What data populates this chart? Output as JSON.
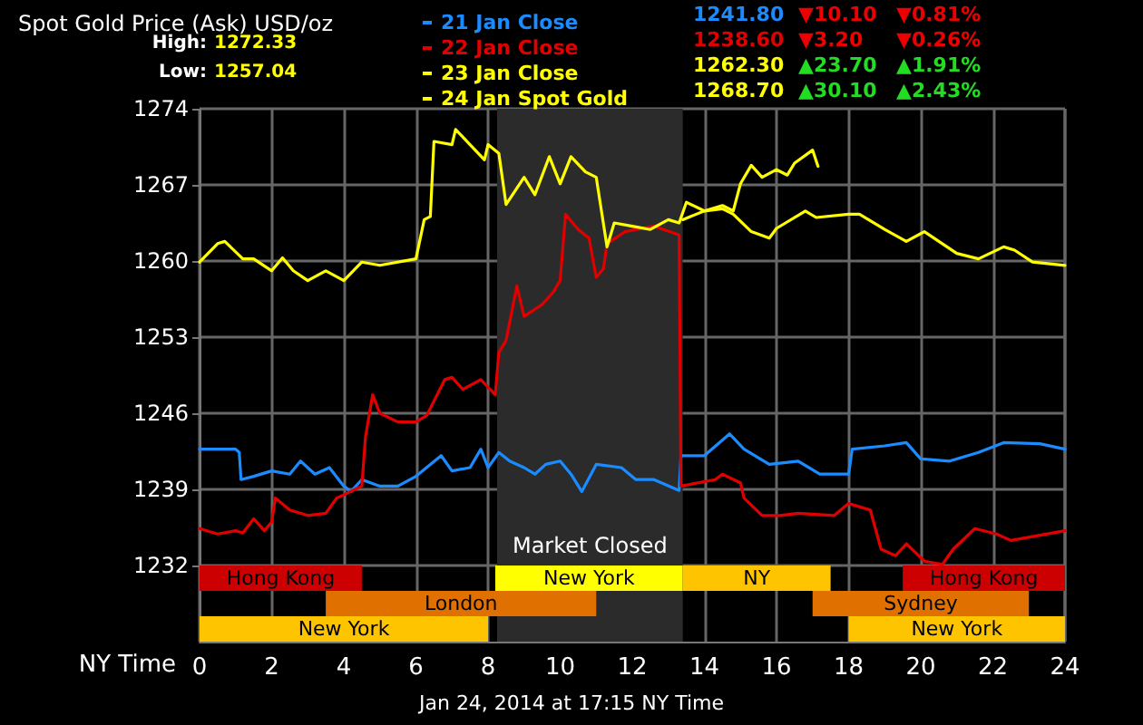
{
  "chart_data": {
    "type": "line",
    "title": "Spot Gold Price (Ask) USD/oz",
    "xlabel": "NY Time",
    "annotations": [
      "High: 1272.33",
      "Low: 1257.04",
      "Jan 24, 2014 at 17:15 NY Time",
      "1241.80",
      "▼10.10",
      "▼0.81%",
      "1238.60",
      "▼3.20",
      "▼0.26%",
      "1262.30",
      "▲23.70",
      "▲1.91%",
      "1268.70",
      "▲30.10",
      "▲2.43%"
    ],
    "series": [
      {
        "name": "21 Jan Close",
        "color": "#1a8cff",
        "x": [
          0,
          1,
          1.1,
          1.15,
          1.5,
          2,
          2.5,
          2.8,
          3.2,
          3.6,
          4,
          4.2,
          4.5,
          5,
          5.5,
          6,
          6.7,
          7,
          7.5,
          7.8,
          8,
          8.3,
          8.6,
          9,
          9.3,
          9.6,
          10,
          10.3,
          10.6,
          11,
          11.7,
          12.1,
          12.6,
          13.3,
          13.35,
          14,
          14.7,
          15.1,
          15.8,
          16.6,
          17.2,
          18,
          18.1,
          19,
          19.6,
          20,
          20.8,
          21.6,
          22.3,
          23.3,
          24
        ],
        "values": [
          1242.7,
          1242.7,
          1242.4,
          1239.9,
          1240.2,
          1240.7,
          1240.4,
          1241.6,
          1240.4,
          1241,
          1239.3,
          1238.8,
          1239.9,
          1239.3,
          1239.3,
          1240.2,
          1242.1,
          1240.7,
          1241,
          1242.7,
          1241,
          1242.4,
          1241.6,
          1241,
          1240.4,
          1241.3,
          1241.6,
          1240.4,
          1238.8,
          1241.3,
          1241,
          1239.9,
          1239.9,
          1238.9,
          1242.1,
          1242.1,
          1244.1,
          1242.7,
          1241.3,
          1241.6,
          1240.4,
          1240.4,
          1242.7,
          1243,
          1243.3,
          1241.8,
          1241.6,
          1242.4,
          1243.3,
          1243.2,
          1242.7
        ]
      },
      {
        "name": "22 Jan Close",
        "color": "#e00000",
        "x": [
          0,
          0.5,
          1,
          1.2,
          1.5,
          1.8,
          2,
          2.1,
          2.5,
          3,
          3.5,
          3.8,
          4,
          4.5,
          4.6,
          4.8,
          5,
          5.5,
          6,
          6.3,
          6.8,
          7,
          7.3,
          7.8,
          8.2,
          8.3,
          8.5,
          8.8,
          9,
          9.5,
          9.8,
          10,
          10.15,
          10.5,
          10.8,
          11,
          11.2,
          11.3,
          11.8,
          12.6,
          13.3,
          13.35,
          14.3,
          14.5,
          15,
          15.1,
          15.6,
          16.1,
          16.6,
          17.6,
          18,
          18.6,
          18.9,
          19.3,
          19.6,
          20.1,
          20.6,
          20.9,
          21.5,
          22.1,
          22.5,
          24
        ],
        "values": [
          1235.4,
          1234.9,
          1235.2,
          1235,
          1236.3,
          1235.2,
          1236,
          1238.2,
          1237.1,
          1236.6,
          1236.8,
          1238.2,
          1238.5,
          1239.3,
          1243.8,
          1247.7,
          1246,
          1245.2,
          1245.2,
          1245.8,
          1249.1,
          1249.3,
          1248.2,
          1249.1,
          1247.7,
          1251.6,
          1252.7,
          1257.7,
          1254.9,
          1256,
          1257.1,
          1258.2,
          1264.3,
          1262.9,
          1262.1,
          1258.5,
          1259.3,
          1261.6,
          1262.7,
          1263.2,
          1262.4,
          1239.3,
          1239.9,
          1240.4,
          1239.6,
          1238.2,
          1236.6,
          1236.6,
          1236.8,
          1236.6,
          1237.7,
          1237.1,
          1233.5,
          1232.9,
          1234,
          1232.4,
          1232.1,
          1233.5,
          1235.4,
          1234.9,
          1234.3,
          1235.2
        ]
      },
      {
        "name": "23 Jan Close",
        "color": "#ffff00",
        "x": [
          13.4,
          14,
          14.5,
          14.8,
          15.3,
          15.8,
          16,
          16.8,
          17.1,
          18,
          18.3,
          19,
          19.6,
          20.1,
          21,
          21.6,
          22.3,
          22.6,
          23.1,
          24
        ],
        "values": [
          1263.8,
          1264.6,
          1264.8,
          1264.3,
          1262.7,
          1262.1,
          1263,
          1264.6,
          1264,
          1264.3,
          1264.3,
          1262.9,
          1261.8,
          1262.7,
          1260.7,
          1260.2,
          1261.3,
          1261,
          1259.9,
          1259.6
        ]
      },
      {
        "name": "24 Jan Spot Gold",
        "color": "#ffff00",
        "x": [
          0,
          0.5,
          0.7,
          1.2,
          1.5,
          2,
          2.3,
          2.6,
          3,
          3.5,
          4,
          4.5,
          5,
          6,
          6.23,
          6.4,
          6.5,
          7,
          7.1,
          7.5,
          7.9,
          8,
          8.3,
          8.5,
          9,
          9.3,
          9.7,
          10,
          10.3,
          10.7,
          11,
          11.3,
          11.5,
          12,
          12.5,
          13,
          13.3,
          13.5,
          14,
          14.5,
          14.8,
          15,
          15.3,
          15.6,
          16,
          16.3,
          16.5,
          17,
          17.15
        ],
        "values": [
          1259.9,
          1261.6,
          1261.8,
          1260.2,
          1260.2,
          1259.1,
          1260.3,
          1259.1,
          1258.2,
          1259.1,
          1258.2,
          1259.9,
          1259.6,
          1260.2,
          1263.8,
          1264.1,
          1271,
          1270.7,
          1272.1,
          1270.7,
          1269.3,
          1270.7,
          1269.9,
          1265.2,
          1267.7,
          1266.1,
          1269.6,
          1267.1,
          1269.6,
          1268.2,
          1267.7,
          1261.3,
          1263.5,
          1263.2,
          1262.9,
          1263.8,
          1263.5,
          1265.4,
          1264.6,
          1265.1,
          1264.6,
          1267.1,
          1268.8,
          1267.7,
          1268.4,
          1267.9,
          1269,
          1270.2,
          1268.7
        ]
      }
    ],
    "xlim": [
      0,
      24
    ],
    "xticks": [
      0,
      2,
      4,
      6,
      8,
      10,
      12,
      14,
      16,
      18,
      20,
      22,
      24
    ],
    "ylim": [
      1225,
      1274
    ],
    "yticks": [
      1232,
      1239,
      1246,
      1253,
      1260,
      1267,
      1274
    ],
    "bands": [
      {
        "axis": "x",
        "from": 8.25,
        "to": 13.4,
        "label": "Market Closed",
        "color": "#2b2b2b"
      },
      {
        "axis": "x",
        "from": 0,
        "to": 4.5,
        "label": "Hong Kong",
        "color": "#cc0000"
      },
      {
        "axis": "x",
        "from": 19.5,
        "to": 24,
        "label": "Hong Kong",
        "color": "#cc0000"
      },
      {
        "axis": "x",
        "from": 3.5,
        "to": 11,
        "label": "London",
        "color": "#e07000"
      },
      {
        "axis": "x",
        "from": 17,
        "to": 23,
        "label": "Sydney",
        "color": "#e07000"
      },
      {
        "axis": "x",
        "from": 0,
        "to": 8,
        "label": "New York",
        "color": "#ffc400"
      },
      {
        "axis": "x",
        "from": 8.2,
        "to": 13.4,
        "label": "New York",
        "color": "#ffff00"
      },
      {
        "axis": "x",
        "from": 13.4,
        "to": 17.5,
        "label": "NY",
        "color": "#ffc400"
      },
      {
        "axis": "x",
        "from": 18,
        "to": 24,
        "label": "New York",
        "color": "#ffc400"
      }
    ],
    "grid": true,
    "legend": "top",
    "marker": "none",
    "line_style": "solid"
  }
}
